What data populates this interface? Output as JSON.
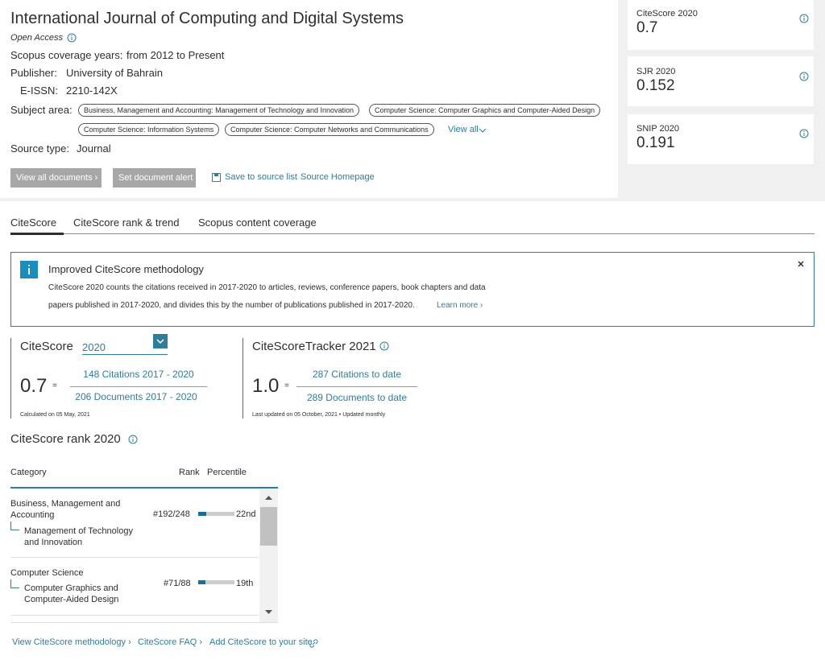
{
  "header": {
    "title": "International Journal of Computing and Digital Systems",
    "open_access": "Open Access",
    "coverage_label": "Scopus coverage years:",
    "coverage": "from 2012 to Present",
    "publisher_label": "Publisher:",
    "publisher": "University of Bahrain",
    "eissn_label": "E-ISSN:",
    "eissn": "2210-142X",
    "subject_label": "Subject area:",
    "subjects": [
      "Business, Management and Accounting: Management of Technology and Innovation",
      "Computer Science: Computer Graphics and Computer-Aided Design",
      "Computer Science: Information Systems",
      "Computer Science: Computer Networks and Communications"
    ],
    "view_all": "View all",
    "source_type_label": "Source type:",
    "source_type": "Journal",
    "buttons": [
      "View all documents",
      "Set document alert"
    ],
    "links": [
      "Save to source list",
      "Source Homepage"
    ]
  },
  "metrics": [
    {
      "label": "CiteScore 2020",
      "value": "0.7"
    },
    {
      "label": "SJR 2020",
      "value": "0.152"
    },
    {
      "label": "SNIP 2020",
      "value": "0.191"
    }
  ],
  "tabs": [
    "CiteScore",
    "CiteScore rank & trend",
    "Scopus content coverage"
  ],
  "notice": {
    "title": "Improved CiteScore methodology",
    "text_line1": "CiteScore 2020 counts the citations received in 2017-2020 to articles, reviews, conference papers, book chapters and data",
    "text_line2": "papers published in 2017-2020, and divides this by the number of publications published in 2017-2020.",
    "link": "Learn more"
  },
  "citescore": {
    "label": "CiteScore",
    "year": "2020",
    "value": "0.7",
    "equals": "=",
    "numerator": "148 Citations 2017 - 2020",
    "denominator": "206 Documents 2017 - 2020",
    "note": "Calculated on 05 May, 2021"
  },
  "tracker": {
    "label": "CiteScoreTracker 2021",
    "value": "1.0",
    "equals": "=",
    "numerator": "287 Citations to date",
    "denominator": "289 Documents to date",
    "note": "Last updated on 05 October, 2021 • Updated monthly"
  },
  "rank": {
    "title": "CiteScore rank 2020",
    "columns": [
      "Category",
      "Rank",
      "Percentile"
    ],
    "rows": [
      {
        "category": "Business, Management and Accounting",
        "subcategory": "Management of Technology and Innovation",
        "rank": "#192/248",
        "percentile": 22,
        "percentile_label": "22nd"
      },
      {
        "category": "Computer Science",
        "subcategory": "Computer Graphics and Computer-Aided Design",
        "rank": "#71/88",
        "percentile": 19,
        "percentile_label": "19th"
      }
    ]
  },
  "footer_links": [
    "View CiteScore methodology",
    "CiteScore FAQ",
    "Add CiteScore to your site"
  ]
}
